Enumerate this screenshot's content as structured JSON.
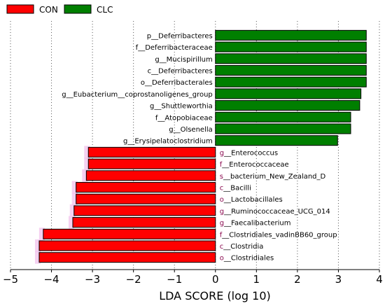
{
  "chart_data": {
    "type": "bar",
    "orientation": "horizontal",
    "xlabel": "LDA SCORE (log 10)",
    "xlim": [
      -5,
      4
    ],
    "xticks": [
      "−5",
      "−4",
      "−3",
      "−2",
      "−1",
      "0",
      "1",
      "2",
      "3",
      "4"
    ],
    "grid": "vertical-dotted",
    "legend_position": "top-left",
    "series": [
      {
        "name": "CON",
        "color": "#ff0000"
      },
      {
        "name": "CLC",
        "color": "#007f00"
      }
    ],
    "bars": [
      {
        "label": "p__Deferribacteres",
        "value": 3.68,
        "group": "CLC"
      },
      {
        "label": "f__Deferribacteraceae",
        "value": 3.68,
        "group": "CLC"
      },
      {
        "label": "g__Mucispirillum",
        "value": 3.68,
        "group": "CLC"
      },
      {
        "label": "c__Deferribacteres",
        "value": 3.68,
        "group": "CLC"
      },
      {
        "label": "o__Deferribacterales",
        "value": 3.68,
        "group": "CLC"
      },
      {
        "label": "g__Eubacterium__coprostanoligenes_group",
        "value": 3.55,
        "group": "CLC"
      },
      {
        "label": "g__Shuttleworthia",
        "value": 3.52,
        "group": "CLC"
      },
      {
        "label": "f__Atopobiaceae",
        "value": 3.3,
        "group": "CLC"
      },
      {
        "label": "g__Olsenella",
        "value": 3.3,
        "group": "CLC"
      },
      {
        "label": "g__Erysipelatoclostridium",
        "value": 2.98,
        "group": "CLC"
      },
      {
        "label": "g__Enterococcus",
        "value": -3.1,
        "group": "CON"
      },
      {
        "label": "f__Enterococcaceae",
        "value": -3.1,
        "group": "CON"
      },
      {
        "label": "s__bacterium_New_Zealand_D",
        "value": -3.15,
        "group": "CON"
      },
      {
        "label": "c__Bacilli",
        "value": -3.4,
        "group": "CON"
      },
      {
        "label": "o__Lactobacillales",
        "value": -3.4,
        "group": "CON"
      },
      {
        "label": "g__Ruminococcaceae_UCG_014",
        "value": -3.45,
        "group": "CON"
      },
      {
        "label": "g__Faecalibacterium",
        "value": -3.48,
        "group": "CON"
      },
      {
        "label": "f__Clostridiales_vadinBB60_group",
        "value": -4.2,
        "group": "CON"
      },
      {
        "label": "c__Clostridia",
        "value": -4.3,
        "group": "CON"
      },
      {
        "label": "o__Clostridiales",
        "value": -4.3,
        "group": "CON"
      }
    ]
  }
}
